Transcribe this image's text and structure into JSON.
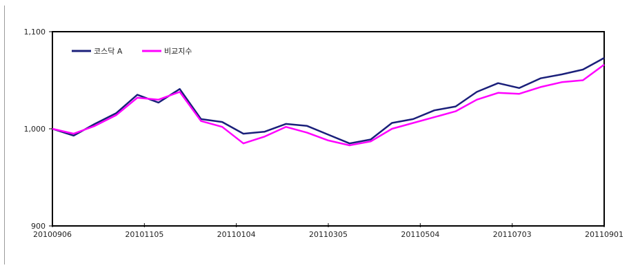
{
  "chart_data": {
    "type": "line",
    "title": "",
    "xlabel": "",
    "ylabel": "",
    "ylim": [
      900,
      1100
    ],
    "yticks": [
      "1,100",
      "1,000",
      "900"
    ],
    "ytick_values": [
      1100,
      1000,
      900
    ],
    "x_tick_labels": [
      "20100906",
      "20101105",
      "20110104",
      "20110305",
      "20110504",
      "20110703",
      "20110901"
    ],
    "x": [
      "20100906",
      "20100920",
      "20101004",
      "20101018",
      "20101101",
      "20101115",
      "20101129",
      "20101213",
      "20101227",
      "20110110",
      "20110124",
      "20110207",
      "20110221",
      "20110307",
      "20110321",
      "20110404",
      "20110418",
      "20110502",
      "20110516",
      "20110530",
      "20110613",
      "20110627",
      "20110711",
      "20110725",
      "20110808",
      "20110822",
      "20110901"
    ],
    "series": [
      {
        "name": "코스닥 A",
        "color": "#1a1f7a",
        "values": [
          1000,
          993,
          1005,
          1016,
          1035,
          1027,
          1041,
          1010,
          1007,
          995,
          997,
          1005,
          1003,
          994,
          985,
          989,
          1006,
          1010,
          1019,
          1023,
          1038,
          1047,
          1042,
          1052,
          1056,
          1061,
          1073
        ]
      },
      {
        "name": "비교지수",
        "color": "#ff00ff",
        "values": [
          1000,
          995,
          1003,
          1014,
          1032,
          1030,
          1038,
          1008,
          1002,
          985,
          992,
          1002,
          996,
          988,
          983,
          987,
          1000,
          1006,
          1012,
          1018,
          1030,
          1037,
          1036,
          1043,
          1048,
          1050,
          1066
        ]
      }
    ],
    "legend_position": "top-left",
    "grid": false
  }
}
